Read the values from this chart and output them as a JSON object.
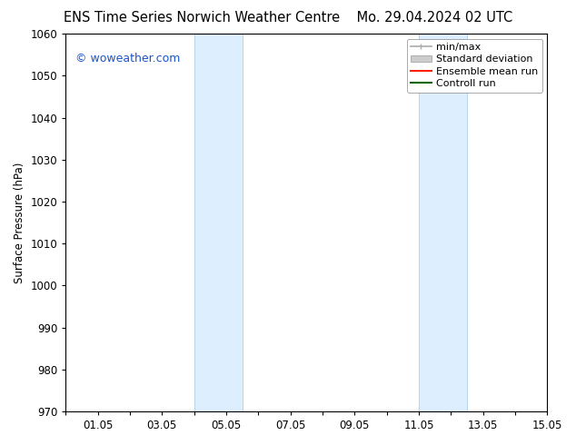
{
  "title_left": "ENS Time Series Norwich Weather Centre",
  "title_right": "Mo. 29.04.2024 02 UTC",
  "ylabel": "Surface Pressure (hPa)",
  "xlim": [
    0,
    15
  ],
  "ylim": [
    970,
    1060
  ],
  "yticks": [
    970,
    980,
    990,
    1000,
    1010,
    1020,
    1030,
    1040,
    1050,
    1060
  ],
  "xtick_positions": [
    0,
    1,
    2,
    3,
    4,
    5,
    6,
    7,
    8,
    9,
    10,
    11,
    12,
    13,
    14,
    15
  ],
  "xtick_labels": [
    "",
    "01.05",
    "",
    "03.05",
    "",
    "05.05",
    "",
    "07.05",
    "",
    "09.05",
    "",
    "11.05",
    "",
    "13.05",
    "",
    "15.05"
  ],
  "shaded_bands": [
    {
      "x_start": 4.0,
      "x_end": 5.5
    },
    {
      "x_start": 11.0,
      "x_end": 12.5
    }
  ],
  "shade_color": "#ddeeff",
  "shade_edge_color": "#b8d4ea",
  "watermark_text": "© woweather.com",
  "watermark_color": "#1a55cc",
  "legend_items": [
    {
      "label": "min/max"
    },
    {
      "label": "Standard deviation"
    },
    {
      "label": "Ensemble mean run"
    },
    {
      "label": "Controll run"
    }
  ],
  "bg_color": "#ffffff",
  "title_fontsize": 10.5,
  "tick_fontsize": 8.5,
  "legend_fontsize": 8,
  "ylabel_fontsize": 8.5
}
